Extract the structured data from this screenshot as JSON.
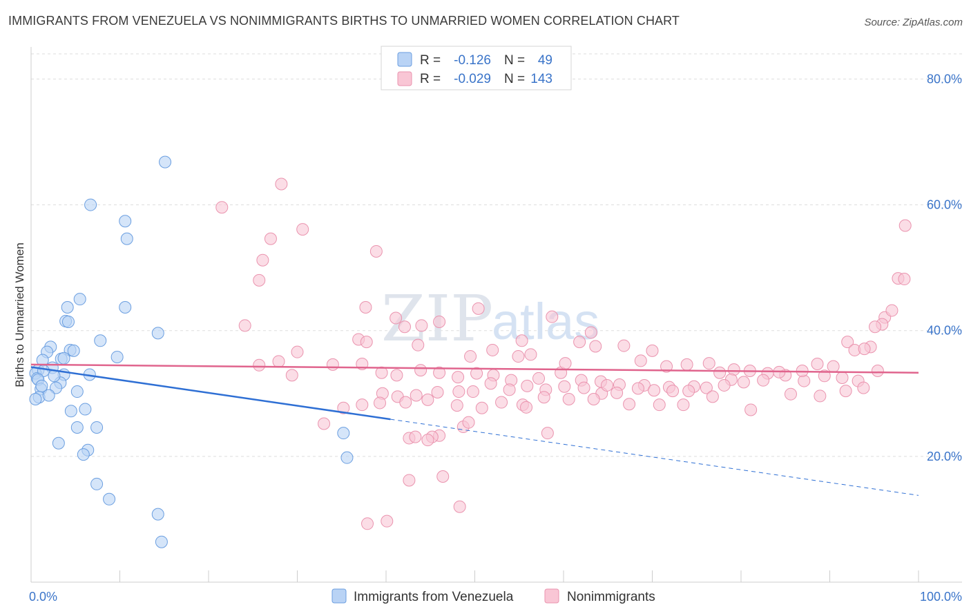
{
  "header": {
    "title": "IMMIGRANTS FROM VENEZUELA VS NONIMMIGRANTS BIRTHS TO UNMARRIED WOMEN CORRELATION CHART",
    "source": "Source: ZipAtlas.com"
  },
  "watermark": {
    "zip": "ZIP",
    "atlas": "atlas"
  },
  "legend": {
    "r_label": "R =",
    "n_label": "N =",
    "rows": [
      {
        "series": "Immigrants from Venezuela",
        "r": "-0.126",
        "n": "49"
      },
      {
        "series": "Nonimmigrants",
        "r": "-0.029",
        "n": "143"
      }
    ]
  },
  "colors": {
    "blue_fill": "#b9d3f5",
    "blue_stroke": "#6a9ee0",
    "blue_line": "#2e6fd4",
    "pink_fill": "#f9c6d5",
    "pink_stroke": "#ea93ae",
    "pink_line": "#e0648d",
    "tick_text": "#3a74c9",
    "grid": "#dddddd"
  },
  "chart_data": {
    "type": "scatter",
    "title": "IMMIGRANTS FROM VENEZUELA VS NONIMMIGRANTS BIRTHS TO UNMARRIED WOMEN CORRELATION CHART",
    "xlabel": "",
    "ylabel": "Births to Unmarried Women",
    "xlim": [
      0,
      100
    ],
    "ylim": [
      0,
      84
    ],
    "x_tick_labels": [
      {
        "value": 0,
        "label": "0.0%"
      },
      {
        "value": 100,
        "label": "100.0%"
      }
    ],
    "y_ticks": [
      {
        "value": 20,
        "label": "20.0%"
      },
      {
        "value": 40,
        "label": "40.0%"
      },
      {
        "value": 60,
        "label": "60.0%"
      },
      {
        "value": 80,
        "label": "80.0%"
      }
    ],
    "series": [
      {
        "name": "Immigrants from Venezuela",
        "r": -0.126,
        "n": 49,
        "trend": {
          "x0": 0,
          "y0": 34.2,
          "x1_solid": 40.5,
          "y1_solid": 25.9,
          "x1": 100,
          "y1": 13.8
        },
        "points": [
          [
            15.1,
            66.8
          ],
          [
            6.7,
            60.0
          ],
          [
            10.6,
            57.4
          ],
          [
            10.8,
            54.6
          ],
          [
            5.5,
            45.0
          ],
          [
            4.1,
            43.7
          ],
          [
            10.6,
            43.7
          ],
          [
            3.9,
            41.5
          ],
          [
            4.2,
            41.4
          ],
          [
            14.3,
            39.6
          ],
          [
            7.8,
            38.4
          ],
          [
            2.2,
            37.4
          ],
          [
            1.8,
            36.6
          ],
          [
            4.4,
            36.9
          ],
          [
            4.8,
            36.8
          ],
          [
            3.4,
            35.5
          ],
          [
            3.7,
            35.6
          ],
          [
            1.3,
            35.3
          ],
          [
            9.7,
            35.8
          ],
          [
            2.4,
            34.1
          ],
          [
            0.8,
            33.7
          ],
          [
            0.5,
            33.2
          ],
          [
            0.7,
            32.4
          ],
          [
            1.4,
            33.6
          ],
          [
            3.7,
            33.0
          ],
          [
            3.3,
            31.7
          ],
          [
            6.6,
            33.0
          ],
          [
            2.6,
            32.8
          ],
          [
            0.8,
            32.2
          ],
          [
            2.8,
            30.9
          ],
          [
            1.1,
            30.7
          ],
          [
            1.2,
            31.2
          ],
          [
            5.2,
            30.3
          ],
          [
            0.9,
            29.4
          ],
          [
            0.5,
            29.1
          ],
          [
            2.0,
            29.7
          ],
          [
            4.5,
            27.2
          ],
          [
            6.1,
            27.5
          ],
          [
            5.2,
            24.6
          ],
          [
            7.4,
            24.6
          ],
          [
            3.1,
            22.1
          ],
          [
            6.4,
            21.0
          ],
          [
            5.9,
            20.3
          ],
          [
            7.4,
            15.6
          ],
          [
            8.8,
            13.2
          ],
          [
            14.3,
            10.8
          ],
          [
            14.7,
            6.4
          ],
          [
            35.2,
            23.7
          ],
          [
            35.6,
            19.8
          ]
        ]
      },
      {
        "name": "Nonimmigrants",
        "r": -0.029,
        "n": 143,
        "trend": {
          "x0": 0,
          "y0": 34.6,
          "x1": 100,
          "y1": 33.3
        },
        "points": [
          [
            28.2,
            63.3
          ],
          [
            21.5,
            59.6
          ],
          [
            30.6,
            56.1
          ],
          [
            27.0,
            54.6
          ],
          [
            38.9,
            52.6
          ],
          [
            26.1,
            51.2
          ],
          [
            25.7,
            48.0
          ],
          [
            98.5,
            56.7
          ],
          [
            97.7,
            48.3
          ],
          [
            98.4,
            48.2
          ],
          [
            37.7,
            43.7
          ],
          [
            50.4,
            43.5
          ],
          [
            41.1,
            42.0
          ],
          [
            58.7,
            42.2
          ],
          [
            63.1,
            39.7
          ],
          [
            24.1,
            40.8
          ],
          [
            44.0,
            40.8
          ],
          [
            42.1,
            40.6
          ],
          [
            46.0,
            41.4
          ],
          [
            55.3,
            38.4
          ],
          [
            61.8,
            38.2
          ],
          [
            36.9,
            38.6
          ],
          [
            37.8,
            38.2
          ],
          [
            43.6,
            37.7
          ],
          [
            52.0,
            36.9
          ],
          [
            49.5,
            35.9
          ],
          [
            54.9,
            35.9
          ],
          [
            56.3,
            36.2
          ],
          [
            63.6,
            37.5
          ],
          [
            66.8,
            37.6
          ],
          [
            68.7,
            35.2
          ],
          [
            71.6,
            34.3
          ],
          [
            73.9,
            34.6
          ],
          [
            76.4,
            34.8
          ],
          [
            77.6,
            33.3
          ],
          [
            79.2,
            33.8
          ],
          [
            81.0,
            33.6
          ],
          [
            83.0,
            33.2
          ],
          [
            85.0,
            32.9
          ],
          [
            87.1,
            32.0
          ],
          [
            89.4,
            32.8
          ],
          [
            91.4,
            32.5
          ],
          [
            93.2,
            32.0
          ],
          [
            95.4,
            33.6
          ],
          [
            70.0,
            36.8
          ],
          [
            78.9,
            32.2
          ],
          [
            74.7,
            31.1
          ],
          [
            71.9,
            31.0
          ],
          [
            69.1,
            31.3
          ],
          [
            66.3,
            31.4
          ],
          [
            64.2,
            31.9
          ],
          [
            62.0,
            32.1
          ],
          [
            59.7,
            33.3
          ],
          [
            57.2,
            32.4
          ],
          [
            54.1,
            32.1
          ],
          [
            52.1,
            32.9
          ],
          [
            50.2,
            33.2
          ],
          [
            48.1,
            32.6
          ],
          [
            46.0,
            33.3
          ],
          [
            43.9,
            33.7
          ],
          [
            41.2,
            32.9
          ],
          [
            39.5,
            33.3
          ],
          [
            37.3,
            34.7
          ],
          [
            34.0,
            34.6
          ],
          [
            30.0,
            36.6
          ],
          [
            27.9,
            35.1
          ],
          [
            25.7,
            34.5
          ],
          [
            29.4,
            32.9
          ],
          [
            92.0,
            38.2
          ],
          [
            94.6,
            37.4
          ],
          [
            96.2,
            42.1
          ],
          [
            97.0,
            43.2
          ],
          [
            95.9,
            41.0
          ],
          [
            95.1,
            40.6
          ],
          [
            92.8,
            36.9
          ],
          [
            93.9,
            37.1
          ],
          [
            90.4,
            34.3
          ],
          [
            88.6,
            34.7
          ],
          [
            86.9,
            33.6
          ],
          [
            84.3,
            33.4
          ],
          [
            82.5,
            32.1
          ],
          [
            80.3,
            31.8
          ],
          [
            78.1,
            31.3
          ],
          [
            76.1,
            30.9
          ],
          [
            74.1,
            30.4
          ],
          [
            72.3,
            30.4
          ],
          [
            70.2,
            30.5
          ],
          [
            68.4,
            30.8
          ],
          [
            66.0,
            30.1
          ],
          [
            64.3,
            30.0
          ],
          [
            62.3,
            30.9
          ],
          [
            60.1,
            31.1
          ],
          [
            58.0,
            30.6
          ],
          [
            55.9,
            31.2
          ],
          [
            53.9,
            30.6
          ],
          [
            51.8,
            31.6
          ],
          [
            49.8,
            30.3
          ],
          [
            48.2,
            30.3
          ],
          [
            45.8,
            30.2
          ],
          [
            43.4,
            29.7
          ],
          [
            41.3,
            29.5
          ],
          [
            39.6,
            30.0
          ],
          [
            37.3,
            28.2
          ],
          [
            35.2,
            27.7
          ],
          [
            55.4,
            28.2
          ],
          [
            57.8,
            29.4
          ],
          [
            60.6,
            29.1
          ],
          [
            63.4,
            29.1
          ],
          [
            64.9,
            31.3
          ],
          [
            67.4,
            28.3
          ],
          [
            70.8,
            28.2
          ],
          [
            73.5,
            28.2
          ],
          [
            76.8,
            29.5
          ],
          [
            81.1,
            27.4
          ],
          [
            85.6,
            29.9
          ],
          [
            88.9,
            29.6
          ],
          [
            91.8,
            30.4
          ],
          [
            93.8,
            30.9
          ],
          [
            39.3,
            28.5
          ],
          [
            42.2,
            28.6
          ],
          [
            44.7,
            29.0
          ],
          [
            48.0,
            28.1
          ],
          [
            50.8,
            27.7
          ],
          [
            53.0,
            28.6
          ],
          [
            55.8,
            27.8
          ],
          [
            33.0,
            25.2
          ],
          [
            48.7,
            24.7
          ],
          [
            49.3,
            25.4
          ],
          [
            42.6,
            22.9
          ],
          [
            46.0,
            23.3
          ],
          [
            43.3,
            23.1
          ],
          [
            45.2,
            23.1
          ],
          [
            58.2,
            23.7
          ],
          [
            44.7,
            22.6
          ],
          [
            42.6,
            16.2
          ],
          [
            46.4,
            16.8
          ],
          [
            48.3,
            12.0
          ],
          [
            37.9,
            9.3
          ],
          [
            40.1,
            9.7
          ],
          [
            60.2,
            34.8
          ]
        ]
      }
    ]
  }
}
